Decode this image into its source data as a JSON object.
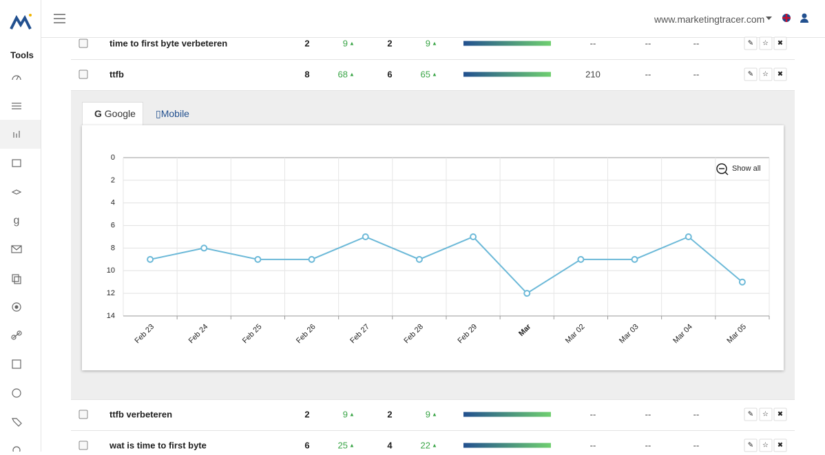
{
  "header": {
    "site": "www.marketingtracer.com"
  },
  "sidebar": {
    "title": "Tools"
  },
  "table": {
    "rows": [
      [
        "time to first byte verbeteren",
        2,
        9,
        2,
        9,
        "--",
        "--",
        "--"
      ],
      [
        "ttfb",
        8,
        68,
        6,
        65,
        210,
        "--",
        "--"
      ],
      [
        "ttfb verbeteren",
        2,
        9,
        2,
        9,
        "--",
        "--",
        "--"
      ],
      [
        "wat is time to first byte",
        6,
        25,
        4,
        22,
        "--",
        "--",
        "--"
      ]
    ]
  },
  "tabs": [
    "Google",
    "Mobile"
  ],
  "chart_data": {
    "type": "line",
    "reset_label": "Show all",
    "categories": [
      "Feb 23",
      "Feb 24",
      "Feb 25",
      "Feb 26",
      "Feb 27",
      "Feb 28",
      "Feb 29",
      "Mar",
      "Mar 02",
      "Mar 03",
      "Mar 04",
      "Mar 05"
    ],
    "values": [
      9,
      8,
      9,
      9,
      7,
      9,
      7,
      12,
      9,
      9,
      7,
      11
    ],
    "color": "#6cb9d8",
    "ylim": [
      0,
      14
    ],
    "y_reversed": true,
    "yticks": [
      0,
      2,
      4,
      6,
      8,
      10,
      12,
      14
    ],
    "grid": true
  }
}
